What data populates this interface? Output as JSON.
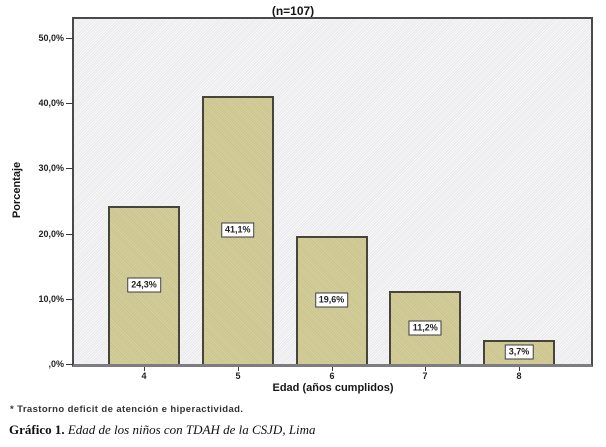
{
  "figure": {
    "footnote": "* Trastorno deficit de atención e hiperactividad.",
    "caption_label": "Gráfico 1.",
    "caption_text": "Edad de los niños con TDAH de la CSJD, Lima"
  },
  "chart_data": {
    "type": "bar",
    "title": "(n=107)",
    "n": 107,
    "categories": [
      "4",
      "5",
      "6",
      "7",
      "8"
    ],
    "values": [
      24.3,
      41.1,
      19.6,
      11.2,
      3.7
    ],
    "bar_value_labels": [
      "24,3%",
      "41,1%",
      "19,6%",
      "11,2%",
      "3,7%"
    ],
    "xlabel": "Edad (años cumplidos)",
    "ylabel": "Porcentaje",
    "ylim": [
      0,
      50
    ],
    "ytick_values": [
      50,
      40,
      30,
      20,
      10,
      0
    ],
    "ytick_labels": [
      "50,0%",
      "40,0%",
      "30,0%",
      "20,0%",
      "10,0%",
      ",0%"
    ],
    "grid": false,
    "legend": "none",
    "colors": {
      "bar_fill": "#d0c992",
      "bar_border": "#45453a",
      "plot_background": "#f0eff1",
      "plot_border": "#4a4a4d",
      "label_box_background": "#ffffff",
      "label_box_border": "#3b3b3b",
      "text": "#161616"
    }
  }
}
